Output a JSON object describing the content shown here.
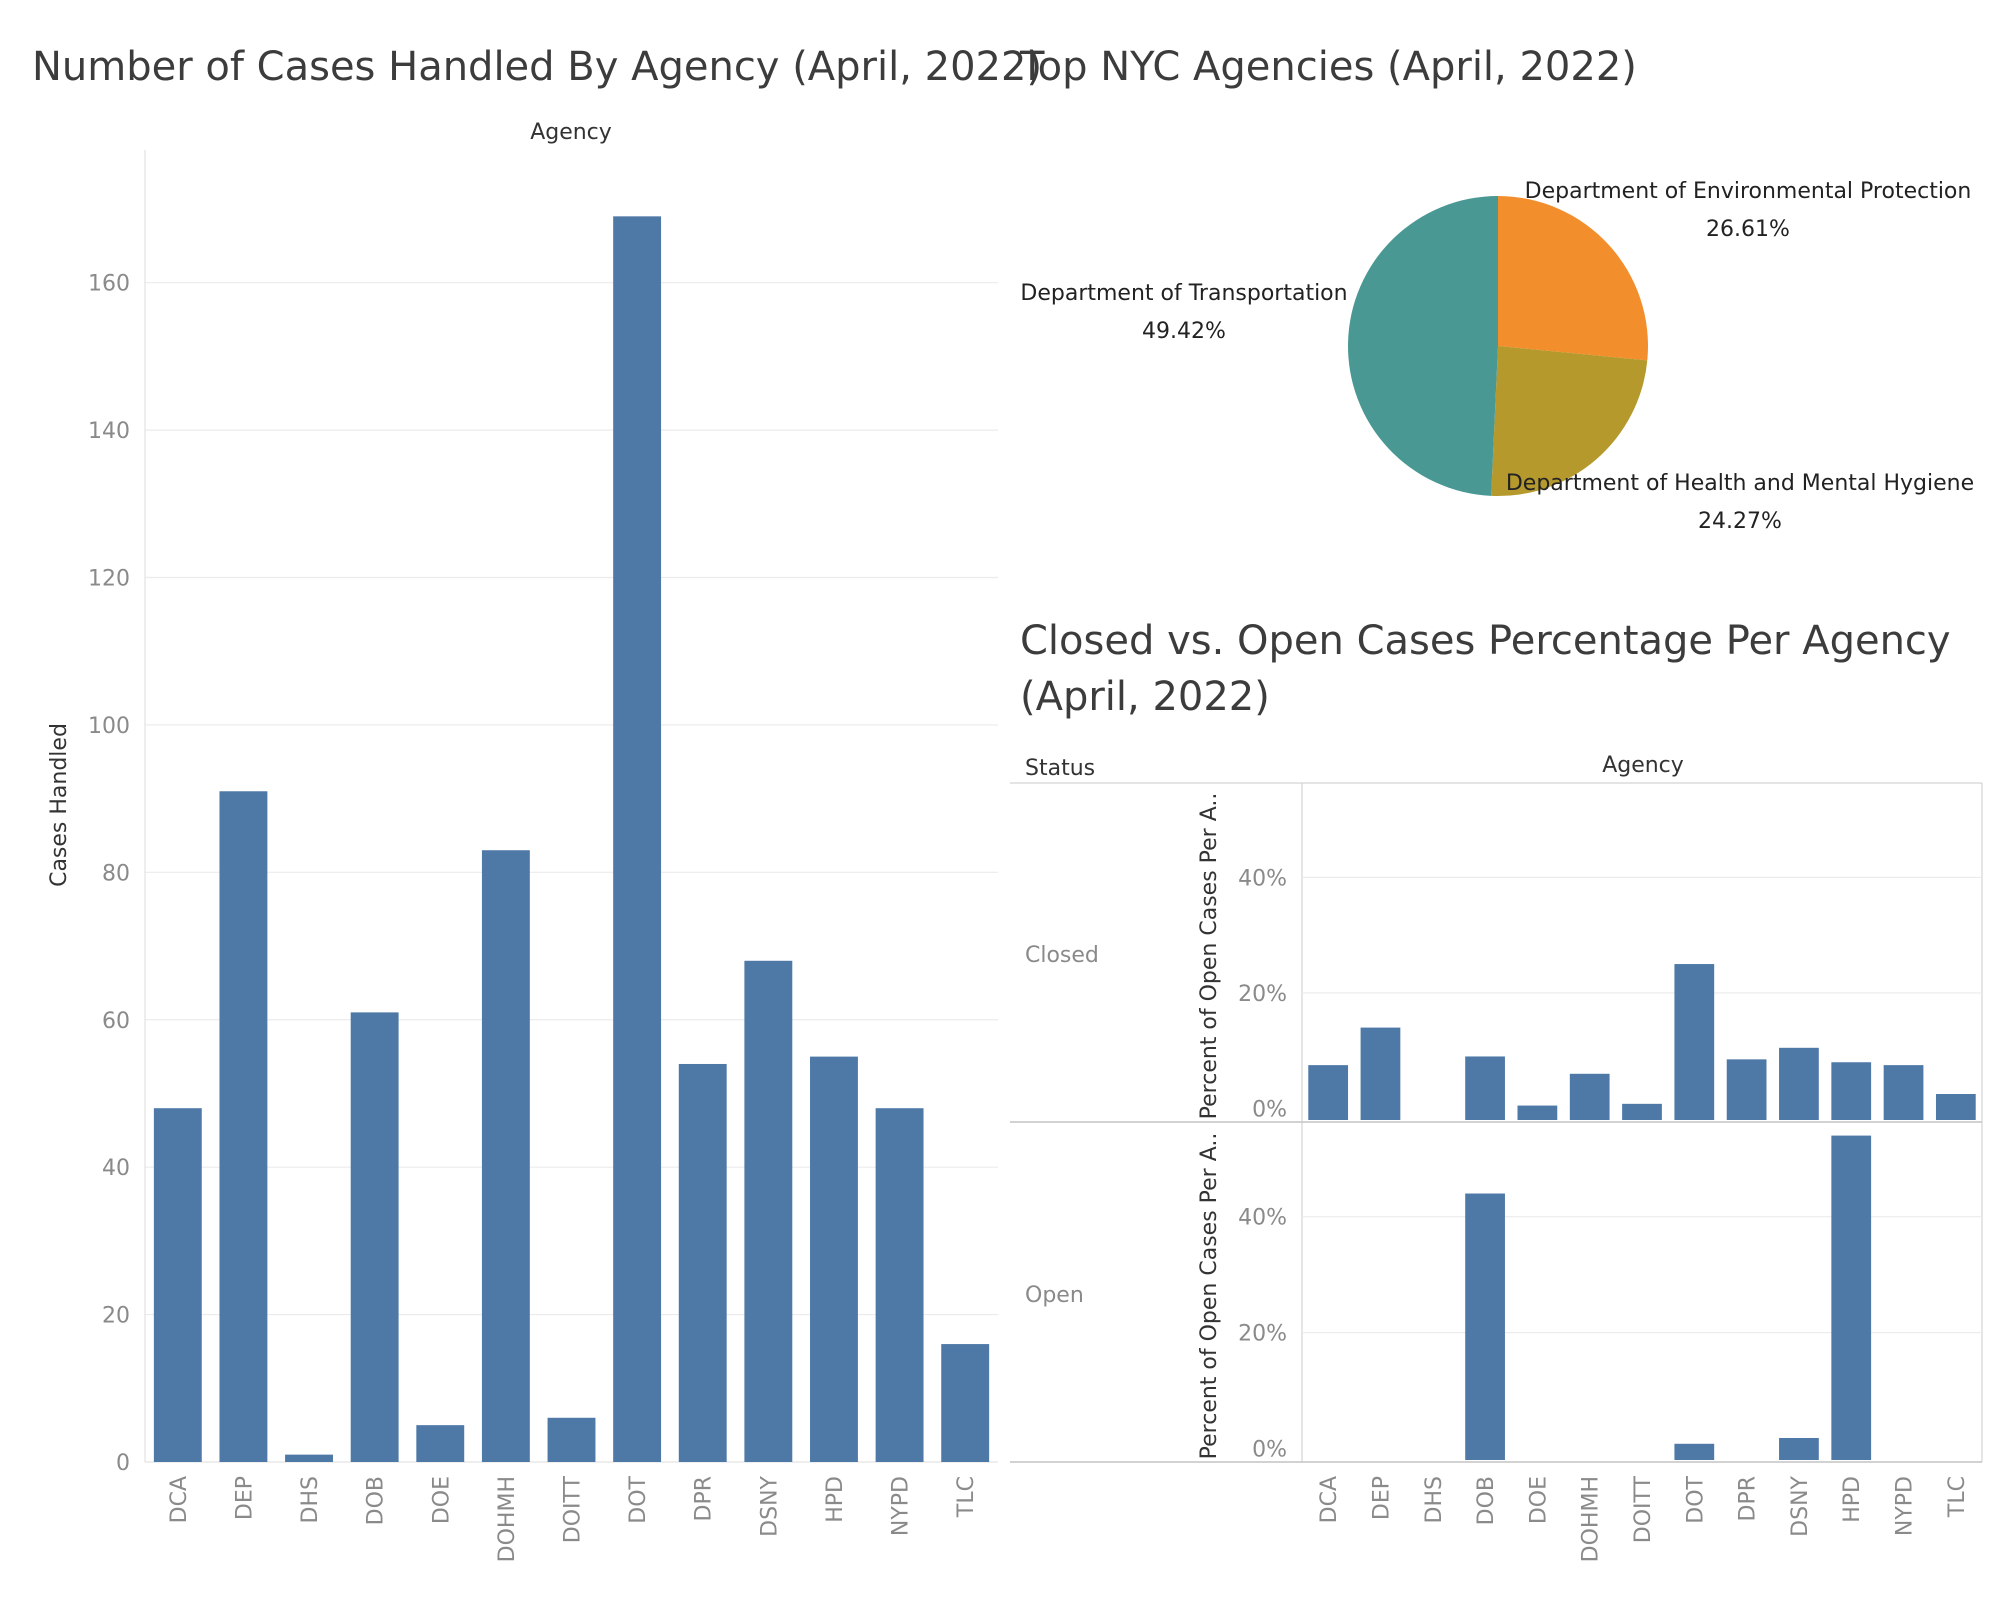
{
  "bar_panel": {
    "title": "Number of Cases Handled By Agency (April, 2022)",
    "column_header": "Agency",
    "y_axis_title": "Cases Handled"
  },
  "pie_panel": {
    "title": "Top NYC Agencies (April, 2022)"
  },
  "status_panel": {
    "title_line1": "Closed vs. Open Cases Percentage Per Agency",
    "title_line2": "(April, 2022)",
    "row_header": "Status",
    "column_header": "Agency",
    "y_axis_title": "Percent of Open Cases Per A..",
    "row_closed": "Closed",
    "row_open": "Open"
  },
  "colors": {
    "bar": "#4e79a7",
    "pie_orange": "#f28e2b",
    "pie_olive": "#b6992d",
    "pie_teal": "#499894",
    "grid": "#ebebeb"
  },
  "chart_data": [
    {
      "type": "bar",
      "title": "Number of Cases Handled By Agency (April, 2022)",
      "xlabel": "Agency",
      "ylabel": "Cases Handled",
      "categories": [
        "DCA",
        "DEP",
        "DHS",
        "DOB",
        "DOE",
        "DOHMH",
        "DOITT",
        "DOT",
        "DPR",
        "DSNY",
        "HPD",
        "NYPD",
        "TLC"
      ],
      "values": [
        48,
        91,
        1,
        61,
        5,
        83,
        6,
        169,
        54,
        68,
        55,
        48,
        16
      ],
      "ylim": [
        0,
        178
      ],
      "yticks": [
        0,
        20,
        40,
        60,
        80,
        100,
        120,
        140,
        160
      ],
      "grid": true
    },
    {
      "type": "pie",
      "title": "Top NYC Agencies (April, 2022)",
      "slices": [
        {
          "label": "Department of Environmental Protection",
          "value": 26.61,
          "display": "26.61%",
          "color": "#f28e2b"
        },
        {
          "label": "Department of Health and Mental Hygiene",
          "value": 24.27,
          "display": "24.27%",
          "color": "#b6992d"
        },
        {
          "label": "Department of Transportation",
          "value": 49.42,
          "display": "49.42%",
          "color": "#499894"
        }
      ]
    },
    {
      "type": "bar",
      "title": "Closed vs. Open Cases Percentage Per Agency (April, 2022)",
      "xlabel": "Agency",
      "ylabel": "Percent of Open Cases Per A..",
      "categories": [
        "DCA",
        "DEP",
        "DHS",
        "DOB",
        "DOE",
        "DOHMH",
        "DOITT",
        "DOT",
        "DPR",
        "DSNY",
        "HPD",
        "NYPD",
        "TLC"
      ],
      "yticks": [
        "0%",
        "20%",
        "40%"
      ],
      "ylim": [
        -2,
        56
      ],
      "grid": true,
      "series": [
        {
          "name": "Closed",
          "values": [
            7.5,
            14,
            0,
            9,
            0.5,
            6,
            0.8,
            25,
            8.5,
            10.5,
            8,
            7.5,
            2.5
          ]
        },
        {
          "name": "Open",
          "values": [
            0,
            0,
            0,
            44,
            0,
            0,
            0,
            0.8,
            0,
            1.8,
            54,
            0,
            0
          ]
        }
      ]
    }
  ]
}
